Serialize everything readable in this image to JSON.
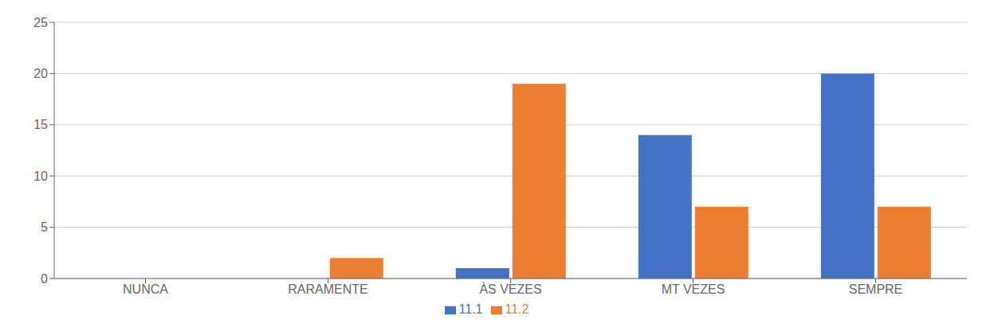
{
  "chart_data": {
    "type": "bar",
    "categories": [
      "NUNCA",
      "RARAMENTE",
      "ÀS VEZES",
      "MT VEZES",
      "SEMPRE"
    ],
    "series": [
      {
        "name": "11.1",
        "color": "#4472C4",
        "values": [
          0,
          0,
          1,
          14,
          20
        ]
      },
      {
        "name": "11.2",
        "color": "#ED7D31",
        "values": [
          0,
          2,
          19,
          7,
          7
        ]
      }
    ],
    "ylim": [
      0,
      25
    ],
    "yticks": [
      0,
      5,
      10,
      15,
      20,
      25
    ],
    "grid": true,
    "legend": "bottom"
  }
}
